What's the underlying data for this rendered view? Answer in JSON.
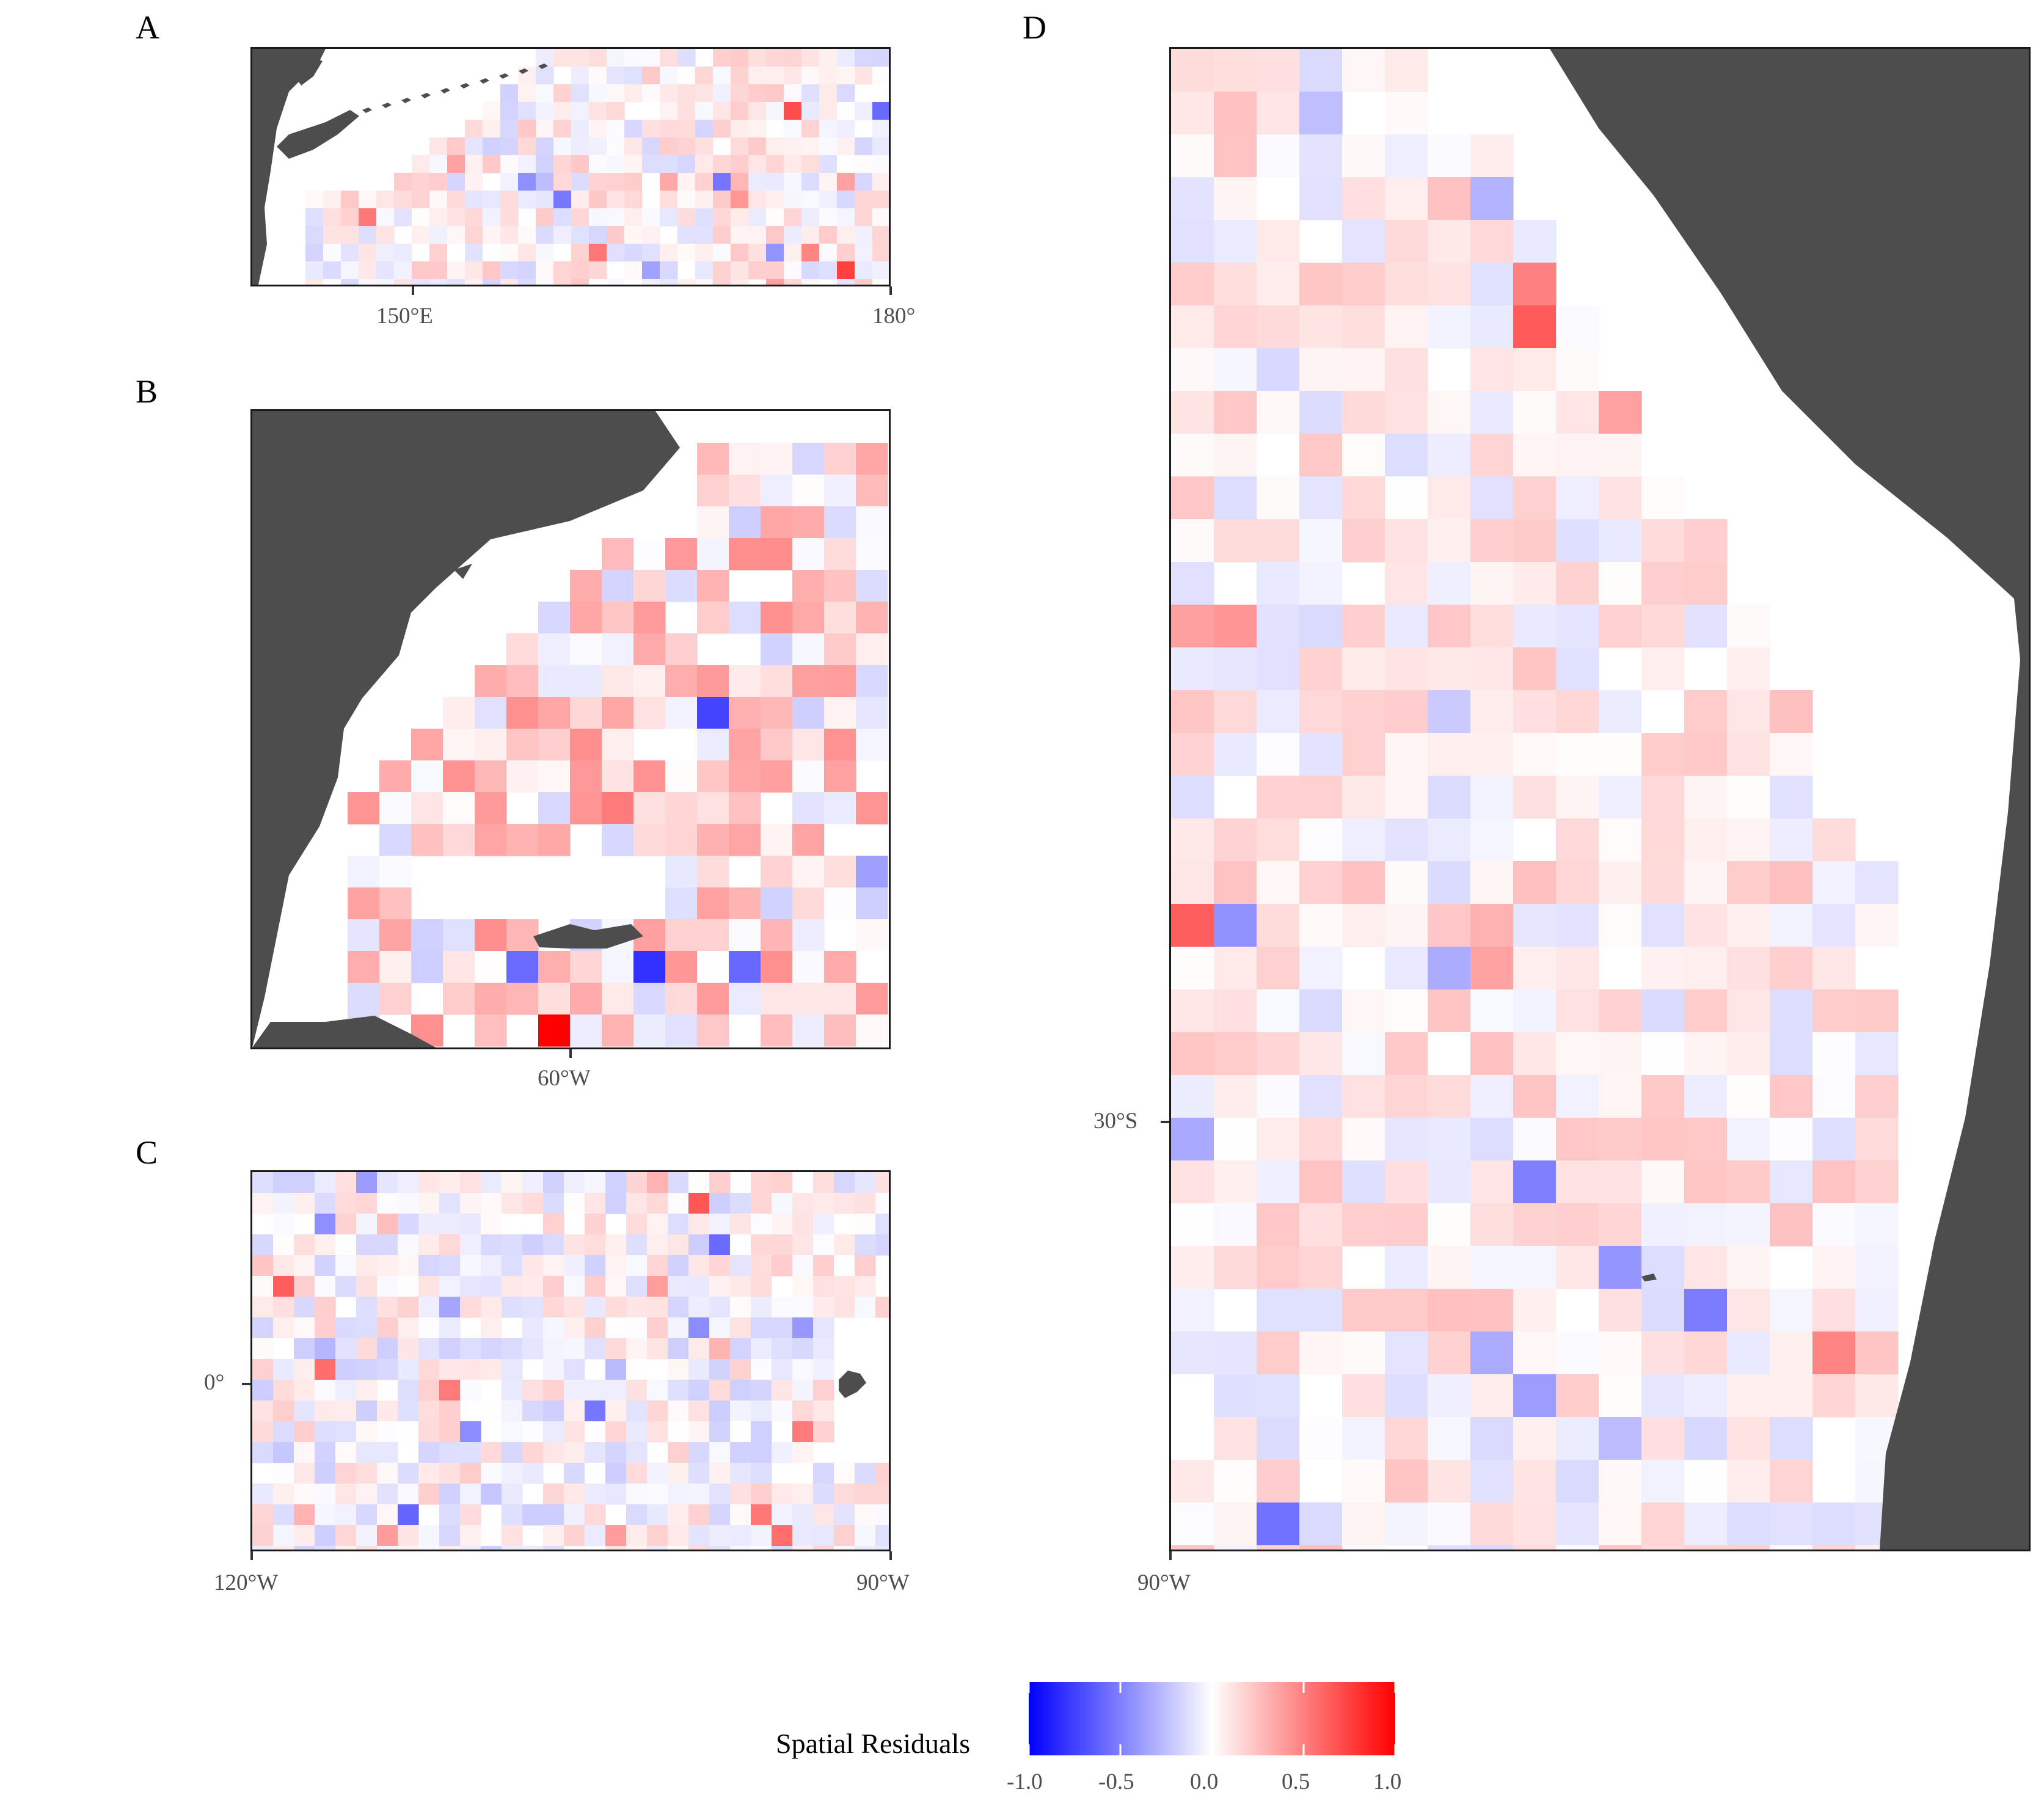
{
  "panels": [
    {
      "id": "A",
      "letter": "A",
      "x_ticks": [
        "150°E",
        "180°"
      ],
      "y_ticks": [],
      "land_color": "#4d4d4d"
    },
    {
      "id": "B",
      "letter": "B",
      "x_ticks": [
        "60°W"
      ],
      "y_ticks": [],
      "land_color": "#4d4d4d"
    },
    {
      "id": "C",
      "letter": "C",
      "x_ticks": [
        "120°W",
        "90°W"
      ],
      "y_ticks": [
        "0°"
      ],
      "land_color": "#4d4d4d"
    },
    {
      "id": "D",
      "letter": "D",
      "x_ticks": [
        "90°W"
      ],
      "y_ticks": [
        "30°S"
      ],
      "land_color": "#4d4d4d"
    }
  ],
  "legend": {
    "title": "Spatial Residuals",
    "min": -1.0,
    "max": 1.0,
    "ticks": [
      "-1.0",
      "-0.5",
      "0.0",
      "0.5",
      "1.0"
    ],
    "colors": {
      "low": "#0000ff",
      "mid": "#ffffff",
      "high": "#ff0000"
    }
  }
}
